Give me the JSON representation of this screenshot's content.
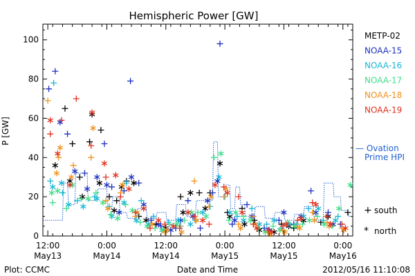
{
  "chart_data": {
    "type": "scatter",
    "title": "Hemispheric Power [GW]",
    "ylabel": "P [GW]",
    "xlabel": "Date and Time",
    "ylim": [
      0,
      108
    ],
    "yticks": [
      0,
      20,
      40,
      60,
      80,
      100
    ],
    "xlim": [
      -1.0,
      62.0
    ],
    "xticks": [
      {
        "hours": 0,
        "time": "12:00",
        "date": "May13"
      },
      {
        "hours": 12,
        "time": "0:00",
        "date": "May14"
      },
      {
        "hours": 24,
        "time": "12:00",
        "date": "May14"
      },
      {
        "hours": 36,
        "time": "0:00",
        "date": "May15"
      },
      {
        "hours": 48,
        "time": "12:00",
        "date": "May15"
      },
      {
        "hours": 60,
        "time": "0:00",
        "date": "May16"
      }
    ],
    "legend": {
      "position": "right",
      "satellites": [
        {
          "name": "METP-02",
          "color": "#000000"
        },
        {
          "name": "NOAA-15",
          "color": "#1a2fbf"
        },
        {
          "name": "NOAA-16",
          "color": "#17b6d6"
        },
        {
          "name": "NOAA-17",
          "color": "#3fdc8a"
        },
        {
          "name": "NOAA-18",
          "color": "#f0901a"
        },
        {
          "name": "NOAA-19",
          "color": "#e0301c"
        }
      ],
      "ovation": {
        "label_line1": "— Ovation",
        "label_line2": "Prime HPI",
        "color": "#1f5fd0"
      },
      "markers": [
        {
          "symbol": "+",
          "label": "south"
        },
        {
          "symbol": "*",
          "label": "north"
        }
      ]
    },
    "ovation_hpi": {
      "x": [
        -1.0,
        3.0,
        3.2,
        4.0,
        4.2,
        5.5,
        5.7,
        8.0,
        8.2,
        10.0,
        10.2,
        12.0,
        12.2,
        13.0,
        13.2,
        14.5,
        14.7,
        16.0,
        16.2,
        18.0,
        18.2,
        20.0,
        20.2,
        22.0,
        22.2,
        24.0,
        24.2,
        26.0,
        26.2,
        28.0,
        28.2,
        30.0,
        30.2,
        33.5,
        33.7,
        34.5,
        34.7,
        36.0,
        36.2,
        37.0,
        37.2,
        38.0,
        38.2,
        39.0,
        39.2,
        40.0,
        40.2,
        42.0,
        42.2,
        44.0,
        44.2,
        46.0,
        46.2,
        48.0,
        48.2,
        50.0,
        50.2,
        52.0,
        52.2,
        54.0,
        54.2,
        56.0,
        56.2,
        58.0,
        58.2,
        59.5,
        59.7,
        61.0,
        61.2,
        62.0
      ],
      "y": [
        8,
        8,
        27,
        27,
        16,
        16,
        32,
        32,
        18,
        18,
        24,
        24,
        14,
        14,
        20,
        20,
        12,
        12,
        9,
        9,
        14,
        14,
        9,
        9,
        12,
        12,
        8,
        8,
        16,
        16,
        10,
        10,
        18,
        18,
        48,
        48,
        20,
        20,
        26,
        26,
        14,
        14,
        25,
        25,
        16,
        16,
        10,
        10,
        15,
        15,
        9,
        9,
        12,
        12,
        8,
        8,
        11,
        11,
        15,
        15,
        8,
        8,
        27,
        27,
        20,
        20,
        13,
        13,
        10,
        10
      ]
    },
    "series": [
      {
        "name": "METP-02",
        "color": "#000000",
        "south": [
          [
            3.5,
            65
          ],
          [
            5.0,
            47
          ],
          [
            6.5,
            30
          ],
          [
            8.5,
            48
          ],
          [
            10.8,
            54
          ],
          [
            12.5,
            20
          ],
          [
            14.0,
            18
          ],
          [
            16.0,
            28
          ],
          [
            18.5,
            10
          ],
          [
            22.0,
            6
          ],
          [
            27.0,
            20
          ],
          [
            30.8,
            22
          ],
          [
            33.0,
            22
          ],
          [
            36.5,
            12
          ],
          [
            39.5,
            14
          ],
          [
            42.0,
            8
          ],
          [
            47.5,
            6
          ],
          [
            50.0,
            4
          ],
          [
            55.5,
            7
          ],
          [
            61.0,
            12
          ]
        ],
        "north": [
          [
            1.5,
            36
          ],
          [
            4.5,
            28
          ],
          [
            7.0,
            20
          ],
          [
            9.0,
            62
          ],
          [
            10.5,
            27
          ],
          [
            13.5,
            13
          ],
          [
            15.0,
            25
          ],
          [
            17.5,
            27
          ],
          [
            20.0,
            8
          ],
          [
            24.0,
            4
          ],
          [
            27.5,
            12
          ],
          [
            29.0,
            22
          ],
          [
            32.0,
            14
          ],
          [
            35.0,
            37
          ],
          [
            37.0,
            10
          ],
          [
            40.0,
            6
          ],
          [
            43.0,
            3
          ],
          [
            46.0,
            2
          ],
          [
            49.0,
            5
          ],
          [
            52.0,
            8
          ],
          [
            57.0,
            10
          ]
        ]
      },
      {
        "name": "NOAA-15",
        "color": "#1a2fbf",
        "south": [
          [
            0.2,
            75
          ],
          [
            1.5,
            84
          ],
          [
            4.0,
            52
          ],
          [
            7.5,
            32
          ],
          [
            11.5,
            47
          ],
          [
            13.0,
            25
          ],
          [
            15.5,
            23
          ],
          [
            16.8,
            79
          ],
          [
            18.5,
            27
          ],
          [
            21.0,
            8
          ],
          [
            23.0,
            5
          ],
          [
            26.0,
            4
          ],
          [
            28.5,
            18
          ],
          [
            31.0,
            4
          ],
          [
            33.5,
            22
          ],
          [
            35.0,
            98
          ],
          [
            37.5,
            6
          ],
          [
            40.5,
            16
          ],
          [
            44.0,
            4
          ],
          [
            47.0,
            8
          ],
          [
            50.0,
            6
          ],
          [
            53.5,
            23
          ],
          [
            57.0,
            12
          ],
          [
            59.5,
            6
          ]
        ],
        "north": [
          [
            2.5,
            58
          ],
          [
            5.5,
            33
          ],
          [
            8.0,
            24
          ],
          [
            10.0,
            30
          ],
          [
            12.0,
            26
          ],
          [
            14.5,
            12
          ],
          [
            17.0,
            30
          ],
          [
            19.5,
            16
          ],
          [
            22.5,
            6
          ],
          [
            25.0,
            3
          ],
          [
            27.0,
            8
          ],
          [
            29.5,
            10
          ],
          [
            32.5,
            18
          ],
          [
            34.5,
            28
          ],
          [
            38.0,
            8
          ],
          [
            41.5,
            10
          ],
          [
            45.0,
            3
          ],
          [
            48.0,
            12
          ],
          [
            51.5,
            10
          ],
          [
            54.5,
            12
          ],
          [
            58.0,
            6
          ]
        ]
      },
      {
        "name": "NOAA-16",
        "color": "#17b6d6",
        "south": [
          [
            0.5,
            28
          ],
          [
            1.2,
            78
          ],
          [
            3.0,
            22
          ],
          [
            6.0,
            18
          ],
          [
            9.5,
            20
          ],
          [
            12.5,
            15
          ],
          [
            16.0,
            27
          ],
          [
            19.0,
            18
          ],
          [
            21.5,
            10
          ],
          [
            24.5,
            7
          ],
          [
            27.0,
            5
          ],
          [
            30.0,
            8
          ],
          [
            33.0,
            15
          ],
          [
            36.0,
            20
          ],
          [
            38.5,
            10
          ],
          [
            41.5,
            14
          ],
          [
            44.5,
            6
          ],
          [
            47.5,
            4
          ],
          [
            50.5,
            6
          ],
          [
            53.0,
            14
          ],
          [
            56.0,
            8
          ],
          [
            59.0,
            10
          ]
        ],
        "north": [
          [
            1.0,
            25
          ],
          [
            2.8,
            27
          ],
          [
            4.2,
            16
          ],
          [
            7.2,
            15
          ],
          [
            10.0,
            19
          ],
          [
            13.0,
            10
          ],
          [
            15.5,
            17
          ],
          [
            18.0,
            8
          ],
          [
            20.5,
            6
          ],
          [
            23.5,
            3
          ],
          [
            26.5,
            8
          ],
          [
            29.0,
            6
          ],
          [
            31.5,
            12
          ],
          [
            34.8,
            30
          ],
          [
            37.0,
            12
          ],
          [
            39.8,
            8
          ],
          [
            43.0,
            6
          ],
          [
            46.0,
            8
          ],
          [
            49.0,
            6
          ],
          [
            52.0,
            10
          ],
          [
            55.0,
            14
          ],
          [
            58.5,
            8
          ]
        ]
      },
      {
        "name": "NOAA-17",
        "color": "#3fdc8a",
        "south": [
          [
            1.0,
            17
          ],
          [
            3.8,
            14
          ],
          [
            6.8,
            19
          ],
          [
            9.8,
            22
          ],
          [
            12.8,
            11
          ],
          [
            15.8,
            16
          ],
          [
            18.8,
            7
          ],
          [
            21.8,
            4
          ],
          [
            24.8,
            6
          ],
          [
            27.8,
            8
          ],
          [
            30.5,
            12
          ],
          [
            33.8,
            40
          ],
          [
            36.8,
            8
          ],
          [
            39.8,
            10
          ],
          [
            42.8,
            4
          ],
          [
            45.8,
            5
          ],
          [
            48.8,
            7
          ],
          [
            51.8,
            6
          ],
          [
            54.8,
            10
          ],
          [
            57.8,
            5
          ]
        ],
        "north": [
          [
            0.8,
            22
          ],
          [
            2.0,
            23
          ],
          [
            5.0,
            26
          ],
          [
            8.2,
            19
          ],
          [
            11.2,
            17
          ],
          [
            14.2,
            9
          ],
          [
            17.2,
            13
          ],
          [
            20.2,
            5
          ],
          [
            23.2,
            3
          ],
          [
            26.2,
            6
          ],
          [
            29.2,
            12
          ],
          [
            32.2,
            10
          ],
          [
            35.2,
            42
          ],
          [
            38.2,
            12
          ],
          [
            41.2,
            8
          ],
          [
            44.2,
            2
          ],
          [
            47.2,
            3
          ],
          [
            50.2,
            5
          ],
          [
            53.2,
            8
          ],
          [
            56.2,
            6
          ],
          [
            59.2,
            14
          ],
          [
            61.5,
            26
          ]
        ]
      },
      {
        "name": "NOAA-18",
        "color": "#f0901a",
        "south": [
          [
            0.0,
            69
          ],
          [
            2.2,
            40
          ],
          [
            5.2,
            36
          ],
          [
            8.8,
            40
          ],
          [
            11.8,
            18
          ],
          [
            14.8,
            22
          ],
          [
            17.8,
            10
          ],
          [
            20.8,
            4
          ],
          [
            23.8,
            2
          ],
          [
            26.8,
            5
          ],
          [
            29.8,
            28
          ],
          [
            32.8,
            15
          ],
          [
            35.8,
            20
          ],
          [
            38.8,
            6
          ],
          [
            41.8,
            10
          ],
          [
            44.8,
            2
          ],
          [
            47.8,
            3
          ],
          [
            50.8,
            5
          ],
          [
            53.8,
            12
          ],
          [
            56.8,
            7
          ],
          [
            59.8,
            4
          ]
        ],
        "north": [
          [
            1.8,
            32
          ],
          [
            2.5,
            45
          ],
          [
            4.8,
            30
          ],
          [
            9.2,
            55
          ],
          [
            12.2,
            14
          ],
          [
            15.2,
            26
          ],
          [
            18.2,
            12
          ],
          [
            21.2,
            6
          ],
          [
            24.2,
            3
          ],
          [
            27.2,
            2
          ],
          [
            30.2,
            8
          ],
          [
            33.2,
            20
          ],
          [
            36.2,
            24
          ],
          [
            39.2,
            4
          ],
          [
            42.2,
            6
          ],
          [
            45.2,
            1
          ],
          [
            48.2,
            2
          ],
          [
            51.2,
            4
          ],
          [
            54.2,
            8
          ],
          [
            57.2,
            5
          ],
          [
            60.2,
            3
          ]
        ]
      },
      {
        "name": "NOAA-19",
        "color": "#e0301c",
        "south": [
          [
            0.5,
            52
          ],
          [
            2.8,
            59
          ],
          [
            5.8,
            70
          ],
          [
            8.8,
            46
          ],
          [
            11.8,
            30
          ],
          [
            14.8,
            20
          ],
          [
            17.8,
            12
          ],
          [
            20.8,
            4
          ],
          [
            23.8,
            6
          ],
          [
            26.8,
            4
          ],
          [
            29.8,
            10
          ],
          [
            32.8,
            6
          ],
          [
            35.8,
            25
          ],
          [
            38.8,
            20
          ],
          [
            41.8,
            6
          ],
          [
            44.8,
            3
          ],
          [
            47.8,
            5
          ],
          [
            50.8,
            8
          ],
          [
            53.8,
            17
          ],
          [
            56.8,
            10
          ],
          [
            59.8,
            6
          ]
        ],
        "north": [
          [
            0.5,
            59
          ],
          [
            2.0,
            42
          ],
          [
            4.5,
            26
          ],
          [
            9.0,
            63
          ],
          [
            11.5,
            37
          ],
          [
            13.8,
            31
          ],
          [
            16.5,
            24
          ],
          [
            19.5,
            14
          ],
          [
            22.5,
            8
          ],
          [
            25.5,
            5
          ],
          [
            28.5,
            12
          ],
          [
            31.5,
            8
          ],
          [
            34.0,
            26
          ],
          [
            36.5,
            22
          ],
          [
            39.5,
            12
          ],
          [
            42.5,
            4
          ],
          [
            45.5,
            2
          ],
          [
            48.5,
            6
          ],
          [
            51.5,
            9
          ],
          [
            54.5,
            16
          ],
          [
            57.5,
            6
          ],
          [
            60.5,
            4
          ]
        ]
      }
    ]
  },
  "footer": {
    "left": "Plot: CCMC",
    "right": "2012/05/16 11:10:08"
  }
}
